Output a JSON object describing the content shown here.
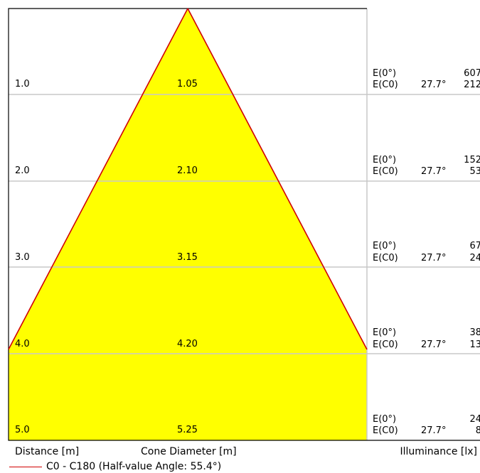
{
  "colors": {
    "cone_fill": "#ffff00",
    "cone_edge": "#d00000",
    "grid": "#c8c8c8",
    "frame": "#000000"
  },
  "rows": [
    {
      "distance": "1.0",
      "diameter": "1.05",
      "e0_label": "E(0°)",
      "ec0_label": "E(C0)",
      "angle": "27.7°",
      "e0_value": "607",
      "ec0_value": "212"
    },
    {
      "distance": "2.0",
      "diameter": "2.10",
      "e0_label": "E(0°)",
      "ec0_label": "E(C0)",
      "angle": "27.7°",
      "e0_value": "152",
      "ec0_value": "53"
    },
    {
      "distance": "3.0",
      "diameter": "3.15",
      "e0_label": "E(0°)",
      "ec0_label": "E(C0)",
      "angle": "27.7°",
      "e0_value": "67",
      "ec0_value": "24"
    },
    {
      "distance": "4.0",
      "diameter": "4.20",
      "e0_label": "E(0°)",
      "ec0_label": "E(C0)",
      "angle": "27.7°",
      "e0_value": "38",
      "ec0_value": "13"
    },
    {
      "distance": "5.0",
      "diameter": "5.25",
      "e0_label": "E(0°)",
      "ec0_label": "E(C0)",
      "angle": "27.7°",
      "e0_value": "24",
      "ec0_value": "8"
    }
  ],
  "footer": {
    "distance_label": "Distance [m]",
    "diameter_label": "Cone Diameter [m]",
    "illuminance_label": "Illuminance [lx]"
  },
  "legend": {
    "label": "C0 - C180 (Half-value Angle: 55.4°)"
  }
}
